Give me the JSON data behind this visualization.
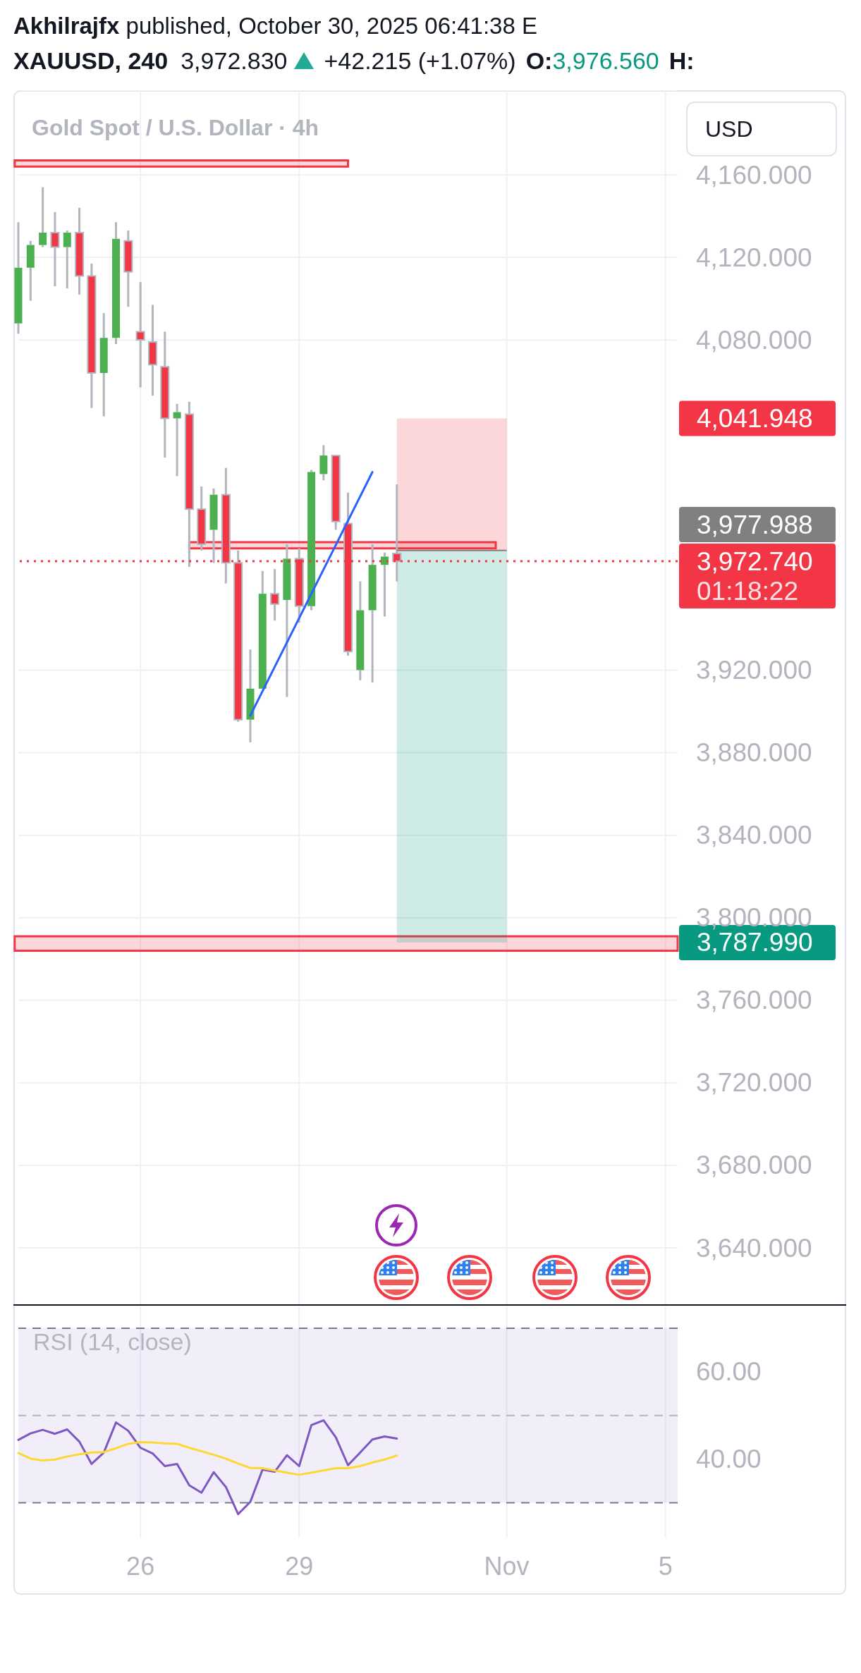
{
  "chart_data": [
    {
      "type": "candlestick",
      "title": "XAUUSD, 240",
      "subtitle": "Gold Spot / U.S. Dollar · 4h",
      "categories": [
        null,
        null,
        null,
        null,
        null,
        null,
        null,
        null,
        null,
        null,
        null,
        null,
        null,
        null,
        null,
        null,
        null,
        null,
        null,
        null,
        null,
        null,
        null,
        null,
        null,
        null,
        null,
        null,
        null,
        null,
        null,
        null,
        null,
        null,
        null,
        null,
        null,
        null,
        null,
        null,
        null,
        null,
        null,
        null,
        null,
        null,
        null,
        null,
        null,
        null,
        null,
        null,
        null,
        null,
        null
      ],
      "ohlc": [
        [
          4088,
          4137,
          4083,
          4115
        ],
        [
          4115,
          4128,
          4099,
          4126
        ],
        [
          4126,
          4154,
          4125,
          4132
        ],
        [
          4132,
          4142,
          4106,
          4125
        ],
        [
          4125,
          4133,
          4105,
          4132
        ],
        [
          4132,
          4144,
          4102,
          4111
        ],
        [
          4111,
          4117,
          4047,
          4064
        ],
        [
          4064,
          4093,
          4043,
          4081
        ],
        [
          4081,
          4137,
          4078,
          4129
        ],
        [
          4128,
          4133,
          4096,
          4113
        ],
        [
          4084,
          4108,
          4057,
          4080
        ],
        [
          4079,
          4097,
          4053,
          4068
        ],
        [
          4067,
          4084,
          4023,
          4042
        ],
        [
          4042,
          4049,
          4014,
          4045
        ],
        [
          4044,
          4050,
          3970,
          3998
        ],
        [
          3998,
          4009,
          3978,
          3981
        ],
        [
          3988,
          4008,
          3972,
          4005
        ],
        [
          4005,
          4018,
          3962,
          3972
        ],
        [
          3972,
          3978,
          3895,
          3896
        ],
        [
          3896,
          3930,
          3885,
          3911
        ],
        [
          3911,
          3968,
          3911,
          3957
        ],
        [
          3957,
          3969,
          3944,
          3952
        ],
        [
          3954,
          3981,
          3907,
          3974
        ],
        [
          3974,
          3979,
          3943,
          3951
        ],
        [
          3951,
          4017,
          3949,
          4016
        ],
        [
          4015,
          4029,
          4012,
          4024
        ],
        [
          4024,
          4024,
          3988,
          3992
        ],
        [
          3991,
          4006,
          3927,
          3929
        ],
        [
          3920,
          3963,
          3915,
          3949
        ],
        [
          3949,
          3981,
          3914,
          3971
        ],
        [
          3971,
          3977,
          3946,
          3975
        ],
        [
          3976.56,
          4010,
          3963,
          3972.74
        ],
        null,
        null,
        null,
        null,
        null,
        null,
        null,
        null,
        null,
        null,
        null,
        null,
        null,
        null,
        null,
        null,
        null,
        null,
        null,
        null,
        null,
        null,
        null
      ],
      "colors": [
        "#4caf50",
        "#4caf50",
        "#4caf50",
        "#f23645",
        "#4caf50",
        "#f23645",
        "#f23645",
        "#4caf50",
        "#4caf50",
        "#f23645",
        "#f23645",
        "#f23645",
        "#f23645",
        "#4caf50",
        "#f23645",
        "#f23645",
        "#4caf50",
        "#f23645",
        "#f23645",
        "#4caf50",
        "#4caf50",
        "#f23645",
        "#4caf50",
        "#f23645",
        "#4caf50",
        "#4caf50",
        "#f23645",
        "#f23645",
        "#4caf50",
        "#4caf50",
        "#4caf50",
        "#f23645",
        null,
        null,
        null,
        null,
        null,
        null,
        null,
        null,
        null,
        null,
        null,
        null,
        null,
        null,
        null,
        null,
        null,
        null,
        null,
        null,
        null,
        null,
        null
      ],
      "series": [
        {
          "type": "line",
          "color": "#2962ff",
          "values": [
            null,
            null,
            null,
            null,
            null,
            null,
            null,
            null,
            null,
            null,
            null,
            null,
            null,
            null,
            null,
            null,
            null,
            null,
            null,
            3898,
            null,
            null,
            null,
            null,
            null,
            null,
            null,
            null,
            null,
            4016,
            null,
            null,
            null,
            null,
            null,
            null,
            null,
            null,
            null,
            null,
            null,
            null,
            null,
            null,
            null,
            null,
            null,
            null,
            null,
            null,
            null,
            null,
            null,
            null,
            null
          ]
        }
      ],
      "ylim": [
        3612,
        4201
      ],
      "yticks": [
        {
          "value": 4160,
          "label": "4,160.000"
        },
        {
          "value": 4120,
          "label": "4,120.000"
        },
        {
          "value": 4080,
          "label": "4,080.000"
        },
        {
          "value": 3920,
          "label": "3,920.000"
        },
        {
          "value": 3880,
          "label": "3,880.000"
        },
        {
          "value": 3840,
          "label": "3,840.000"
        },
        {
          "value": 3800,
          "label": "3,800.000"
        },
        {
          "value": 3760,
          "label": "3,760.000"
        },
        {
          "value": 3720,
          "label": "3,720.000"
        },
        {
          "value": 3680,
          "label": "3,680.000"
        },
        {
          "value": 3640,
          "label": "3,640.000"
        }
      ],
      "tick_labels": "y",
      "grid": true,
      "ref_lines": [
        {
          "axis": "y",
          "value": 3972.74,
          "label": "3,972.740",
          "color": "#f23645",
          "line_style": "dotted"
        },
        {
          "axis": "y",
          "value": 3977.988,
          "color": "#808080"
        }
      ],
      "bands": [
        {
          "axis": "y",
          "from": 4164,
          "to": 4167,
          "color": "#f23645"
        },
        {
          "axis": "y",
          "from": 3979,
          "to": 3982,
          "color": "#f23645"
        },
        {
          "axis": "y",
          "from": 3784,
          "to": 3791,
          "color": "#f23645"
        },
        {
          "axis": "y",
          "from": 3977.988,
          "to": 4041.948,
          "color": "#f23645"
        },
        {
          "axis": "y",
          "from": 3977.988,
          "to": 3787.99,
          "color": "#089981"
        }
      ],
      "annotations": [
        "Akhilrajfx",
        "published, October 30, 2025 06:41:38 E",
        "3,972.830",
        "+42.215 (+1.07%)",
        "O:",
        "3,976.560",
        "H:",
        "USD",
        "01:18:22",
        "4,041.948",
        "3,787.990",
        "3,977.988"
      ]
    },
    {
      "type": "line",
      "title": "RSI (14, close)",
      "categories": [
        null,
        null,
        null,
        null,
        null,
        null,
        null,
        null,
        null,
        null,
        "26",
        null,
        null,
        null,
        null,
        null,
        null,
        null,
        null,
        null,
        null,
        null,
        null,
        "29",
        null,
        null,
        null,
        null,
        null,
        null,
        null,
        null,
        null,
        null,
        null,
        null,
        null,
        null,
        null,
        null,
        "Nov",
        null,
        null,
        null,
        null,
        null,
        null,
        null,
        null,
        null,
        null,
        null,
        null,
        "5",
        null
      ],
      "series": [
        {
          "color": "#7e57c2",
          "values": [
            44.4,
            45.9,
            46.7,
            45.8,
            46.8,
            44.0,
            38.9,
            41.5,
            48.4,
            46.5,
            42.6,
            41.3,
            38.4,
            38.9,
            34.0,
            32.3,
            37.0,
            33.6,
            27.4,
            30.2,
            37.6,
            37.1,
            40.9,
            38.4,
            47.8,
            48.9,
            45.0,
            38.6,
            41.5,
            44.5,
            45.2,
            44.7,
            null,
            null,
            null,
            null,
            null,
            null,
            null,
            null,
            null,
            null,
            null,
            null,
            null,
            null,
            null,
            null,
            null,
            null,
            null,
            null,
            null,
            null,
            null
          ]
        },
        {
          "color": "#fdd835",
          "values": [
            41.4,
            40.1,
            39.7,
            39.9,
            40.6,
            41.1,
            41.5,
            41.6,
            42.5,
            43.5,
            43.9,
            43.8,
            43.6,
            43.5,
            42.6,
            41.8,
            41.0,
            40.1,
            39.0,
            38.0,
            37.9,
            37.4,
            36.9,
            36.4,
            36.9,
            37.4,
            37.9,
            37.9,
            38.4,
            39.2,
            39.9,
            40.8,
            null,
            null,
            null,
            null,
            null,
            null,
            null,
            null,
            null,
            null,
            null,
            null,
            null,
            null,
            null,
            null,
            null,
            null,
            null,
            null,
            null,
            null,
            null
          ]
        }
      ],
      "ylim": [
        22,
        75
      ],
      "yticks": [
        {
          "value": 60,
          "label": "60.00"
        },
        {
          "value": 40,
          "label": "40.00"
        }
      ],
      "grid": "x",
      "ref_lines": [
        {
          "axis": "y",
          "value": 70,
          "color": "#787b86",
          "line_style": "dashed"
        },
        {
          "axis": "y",
          "value": 50,
          "color": "#b2b5be",
          "line_style": "dashed"
        },
        {
          "axis": "y",
          "value": 30,
          "color": "#787b86",
          "line_style": "dashed"
        }
      ],
      "bands": [
        {
          "axis": "y",
          "from": 30,
          "to": 70,
          "color": "#7e57c2"
        }
      ]
    }
  ]
}
